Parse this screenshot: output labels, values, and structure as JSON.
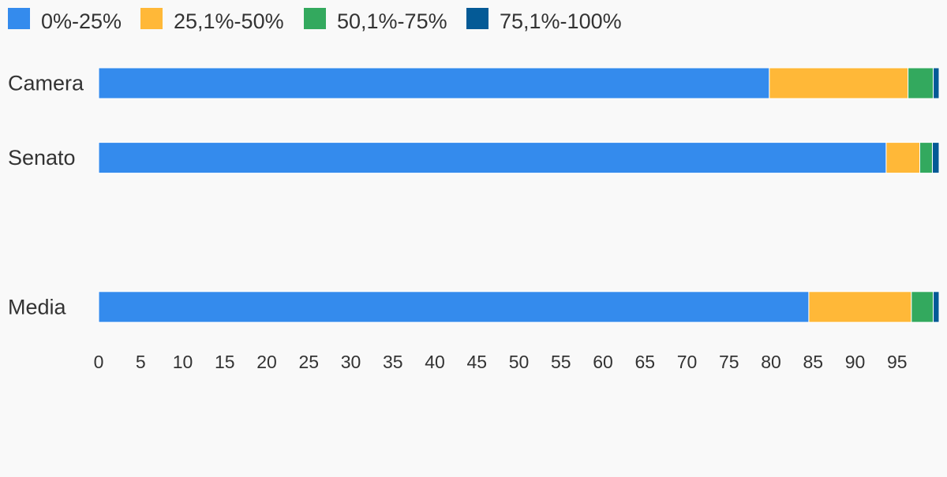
{
  "chart_data": {
    "type": "bar",
    "orientation": "horizontal",
    "stacked": true,
    "categories": [
      "Camera",
      "Senato",
      "",
      "Media"
    ],
    "series": [
      {
        "name": "0%-25%",
        "color": "#348bed",
        "values": [
          79.8,
          93.7,
          null,
          84.5
        ]
      },
      {
        "name": "25,1%-50%",
        "color": "#ffb838",
        "values": [
          16.5,
          4.0,
          null,
          12.2
        ]
      },
      {
        "name": "50,1%-75%",
        "color": "#33a95e",
        "values": [
          3.0,
          1.5,
          null,
          2.6
        ]
      },
      {
        "name": "75,1%-100%",
        "color": "#045a96",
        "values": [
          0.7,
          0.8,
          null,
          0.7
        ]
      }
    ],
    "x_ticks": [
      "0",
      "5",
      "10",
      "15",
      "20",
      "25",
      "30",
      "35",
      "40",
      "45",
      "50",
      "55",
      "60",
      "65",
      "70",
      "75",
      "80",
      "85",
      "90",
      "95"
    ],
    "xlim": [
      0,
      100
    ],
    "legend_position": "top-left",
    "grid": false,
    "title": "",
    "xlabel": "",
    "ylabel": ""
  }
}
